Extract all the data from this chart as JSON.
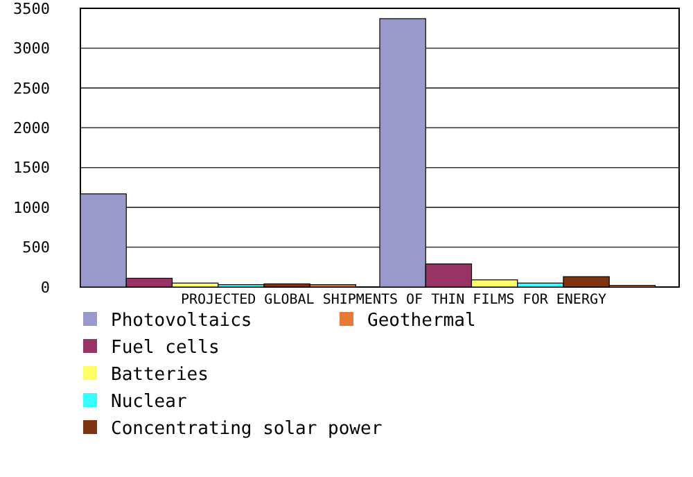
{
  "chart_data": {
    "type": "bar",
    "xlabel": "PROJECTED GLOBAL SHIPMENTS OF THIN FILMS FOR ENERGY",
    "categories": [
      null,
      null
    ],
    "series": [
      {
        "name": "Photovoltaics",
        "color": "#9999cc",
        "values": [
          1170,
          3370
        ]
      },
      {
        "name": "Fuel cells",
        "color": "#993366",
        "values": [
          110,
          290
        ]
      },
      {
        "name": "Batteries",
        "color": "#ffff66",
        "values": [
          50,
          90
        ]
      },
      {
        "name": "Nuclear",
        "color": "#33ffff",
        "values": [
          30,
          50
        ]
      },
      {
        "name": "Concentrating solar power",
        "color": "#803311",
        "values": [
          40,
          130
        ]
      },
      {
        "name": "Geothermal",
        "color": "#e67a33",
        "values": [
          30,
          20
        ]
      }
    ],
    "ylim": [
      0,
      3500
    ],
    "yticks": [
      0,
      500,
      1000,
      1500,
      2000,
      2500,
      3000,
      3500
    ],
    "grid": "y",
    "legend": "bottom"
  }
}
